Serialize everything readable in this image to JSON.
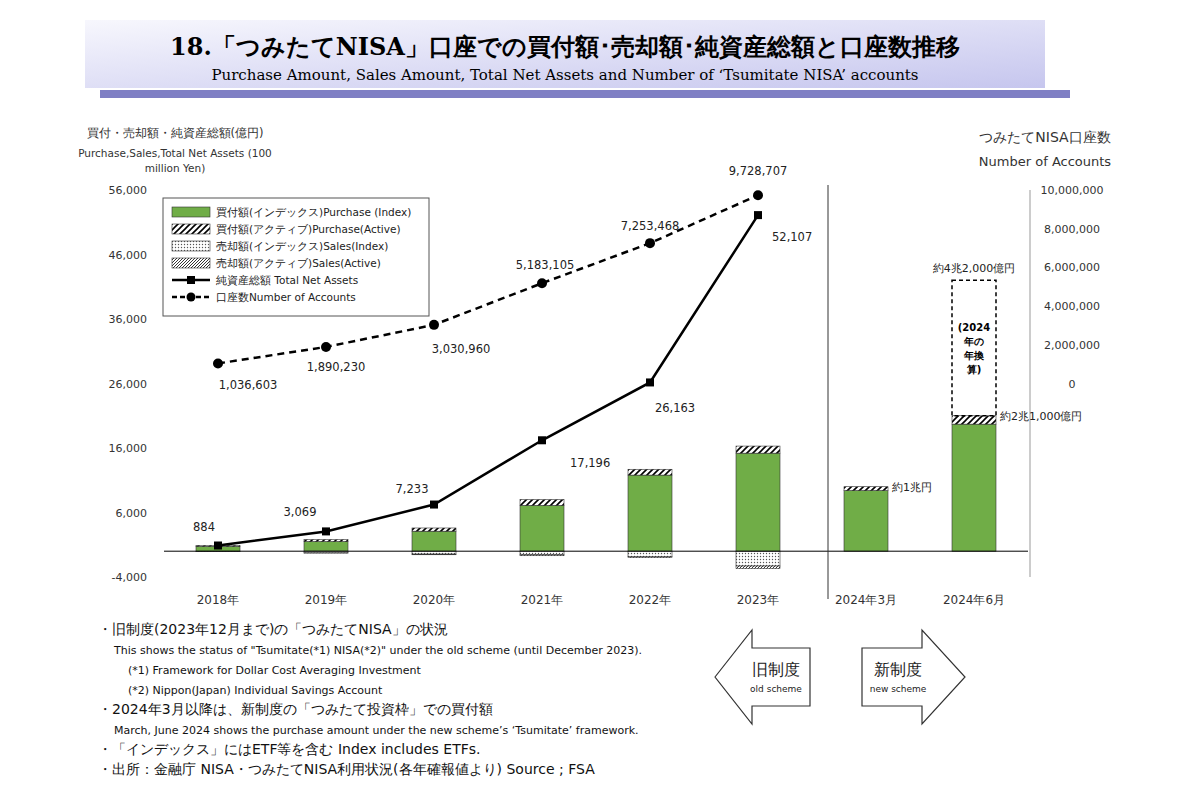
{
  "chart_data": {
    "type": "bar",
    "title": "18.「つみたてNISA」口座での買付額･売却額･純資産総額と口座数推移",
    "subtitle": "Purchase Amount, Sales Amount, Total Net Assets and Number of ‘Tsumitate NISA’ accounts",
    "y_label": [
      "買付・売却額・純資産総額(億円)",
      "Purchase,Sales,Total Net Assets (100",
      "million Yen)"
    ],
    "y2_label": [
      "つみたてNISA口座数",
      "Number of Accounts"
    ],
    "categories": [
      "2018年",
      "2019年",
      "2020年",
      "2021年",
      "2022年",
      "2023年",
      "2024年3月",
      "2024年6月"
    ],
    "stacked": true,
    "grid": false,
    "legend": "top-left",
    "ylim": [
      -4000,
      56000
    ],
    "yticks": [
      {
        "value": -4000,
        "label": "-4,000"
      },
      {
        "value": 6000,
        "label": "6,000"
      },
      {
        "value": 16000,
        "label": "16,000"
      },
      {
        "value": 26000,
        "label": "26,000"
      },
      {
        "value": 36000,
        "label": "36,000"
      },
      {
        "value": 46000,
        "label": "46,000"
      },
      {
        "value": 56000,
        "label": "56,000"
      }
    ],
    "y2lim": [
      -10000000,
      10000000
    ],
    "y2ticks": [
      0,
      {
        "value": 2000000,
        "label": "2,000,000"
      },
      {
        "value": 4000000,
        "label": "4,000,000"
      },
      {
        "value": 6000000,
        "label": "6,000,000"
      },
      {
        "value": 8000000,
        "label": "8,000,000"
      },
      {
        "value": 10000000,
        "label": "10,000,000"
      }
    ],
    "series": [
      {
        "name": "買付額(インデックス)Purchase (Index)",
        "type": "bar",
        "color": "#70ad47",
        "values": [
          750,
          1500,
          3100,
          7100,
          11800,
          15200,
          9400,
          19700
        ]
      },
      {
        "name": "買付額(アクティブ)Purchase(Active)",
        "type": "bar",
        "color": "#000000",
        "values": [
          150,
          300,
          500,
          900,
          900,
          1100,
          600,
          1300
        ]
      },
      {
        "name": "売却額(インデックス)Sales(Index)",
        "type": "bar",
        "color": "#555555",
        "values": [
          -50,
          -250,
          -450,
          -550,
          -800,
          -2300,
          null,
          null
        ]
      },
      {
        "name": "売却額(アクティブ)Sales(Active)",
        "type": "bar",
        "color": "#000000",
        "values": [
          -20,
          -50,
          -100,
          -150,
          -200,
          -400,
          null,
          null
        ]
      },
      {
        "name": "純資産総額 Total Net Assets",
        "type": "line",
        "color": "#000000",
        "marker": "square",
        "line_style": "solid",
        "data_labels": true,
        "values": [
          884,
          3069,
          7233,
          17196,
          26163,
          52107,
          null,
          null
        ],
        "value_labels": [
          "884",
          "3,069",
          "7,233",
          "17,196",
          "26,163",
          "52,107",
          null,
          null
        ]
      },
      {
        "name": "口座数Number of Accounts",
        "type": "line",
        "axis": "y2",
        "color": "#000000",
        "marker": "circle",
        "line_style": "dashed",
        "data_labels": true,
        "values": [
          1036603,
          1890230,
          3030960,
          5183105,
          7253468,
          9728707,
          null,
          null
        ],
        "value_labels": [
          "1,036,603",
          "1,890,230",
          "3,030,960",
          "5,183,105",
          "7,253,468",
          "9,728,707",
          null,
          null
        ]
      }
    ],
    "annualized": {
      "label": "(2024年の年換算)",
      "category": "2024年6月",
      "value": 21000
    },
    "annotations": [
      {
        "text": "約1兆円",
        "category": "2024年3月",
        "value": 10000
      },
      {
        "text": "約2兆1,000億円",
        "category": "2024年6月",
        "value": 21000
      },
      {
        "text": "約4兆2,000億円",
        "category": "2024年6月",
        "value": 42000
      }
    ],
    "schemes": [
      {
        "label": "旧制度",
        "sublabel": "old scheme",
        "categories": [
          "2018年",
          "2019年",
          "2020年",
          "2021年",
          "2022年",
          "2023年"
        ]
      },
      {
        "label": "新制度",
        "sublabel": "new scheme",
        "categories": [
          "2024年3月",
          "2024年6月"
        ]
      }
    ]
  },
  "notes": [
    {
      "text": "・旧制度(2023年12月まで)の「つみたてNISA」の状況",
      "sub": [
        "This shows the status of \"Tsumitate(*1) NISA(*2)\" under the old scheme (until December 2023).",
        "(*1) Framework for Dollar Cost Averaging Investment",
        "(*2) Nippon(Japan) Individual Savings Account"
      ]
    },
    {
      "text": "・2024年3月以降は、新制度の「つみたて投資枠」での買付額",
      "sub": [
        "March, June 2024 shows the purchase amount under the new scheme’s ‘Tsumitate’ framework."
      ]
    },
    {
      "text": "・「インデックス」にはETF等を含む Index includes ETFs.",
      "sub": []
    },
    {
      "text": "・出所：金融庁 NISA・つみたてNISA利用状況(各年確報値より) Source ; FSA",
      "sub": []
    }
  ]
}
